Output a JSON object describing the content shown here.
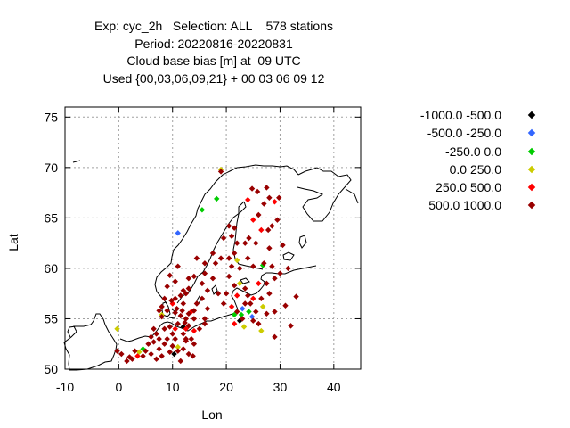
{
  "title_lines": [
    "Exp: cyc_2h   Selection: ALL    578 stations",
    "Period: 20220816-20220831",
    "Cloud base bias [m] at  09 UTC",
    "Used {00,03,06,09,21} + 00 03 06 09 12"
  ],
  "chart_data": {
    "type": "scatter",
    "xlabel": "Lon",
    "ylabel": "Lat",
    "xlim": [
      -10,
      45
    ],
    "ylim": [
      50,
      76
    ],
    "xticks": [
      -10,
      0,
      10,
      20,
      30,
      40
    ],
    "yticks": [
      50,
      55,
      60,
      65,
      70,
      75
    ],
    "grid": true,
    "legend_position": "right",
    "series": [
      {
        "name": "-1000.0 -500.0",
        "color": "#000000",
        "points": [
          [
            10.3,
            51.5
          ],
          [
            22.5,
            54.8
          ],
          [
            12.0,
            54.2
          ]
        ]
      },
      {
        "name": "-500.0 -250.0",
        "color": "#3366ff",
        "points": [
          [
            11.0,
            63.5
          ],
          [
            23.0,
            56.0
          ],
          [
            24.8,
            55.2
          ]
        ]
      },
      {
        "name": "-250.0 0.0",
        "color": "#00cc00",
        "points": [
          [
            15.5,
            65.8
          ],
          [
            18.2,
            66.9
          ],
          [
            26.8,
            60.3
          ],
          [
            21.5,
            55.4
          ],
          [
            24.2,
            55.7
          ],
          [
            22.8,
            55.4
          ],
          [
            4.5,
            52.0
          ]
        ]
      },
      {
        "name": "0.0 250.0",
        "color": "#cccc00",
        "points": [
          [
            19.0,
            69.8
          ],
          [
            -0.3,
            54.0
          ],
          [
            8.0,
            55.4
          ],
          [
            22.0,
            60.8
          ],
          [
            22.5,
            58.5
          ],
          [
            23.3,
            54.2
          ],
          [
            26.8,
            56.2
          ],
          [
            26.5,
            53.8
          ],
          [
            11.0,
            52.2
          ],
          [
            3.8,
            51.7
          ]
        ]
      },
      {
        "name": "250.0 500.0",
        "color": "#ff0000",
        "points": [
          [
            12.5,
            54.0
          ],
          [
            14.0,
            53.8
          ],
          [
            13.5,
            55.7
          ],
          [
            22.0,
            57.3
          ],
          [
            21.0,
            56.2
          ],
          [
            24.0,
            66.8
          ],
          [
            29.0,
            66.6
          ],
          [
            25.0,
            64.8
          ],
          [
            26.5,
            63.8
          ],
          [
            26.0,
            58.5
          ],
          [
            25.0,
            57.0
          ],
          [
            21.5,
            54.5
          ],
          [
            10.0,
            56.5
          ],
          [
            3.5,
            51.3
          ],
          [
            10.5,
            54.0
          ]
        ]
      },
      {
        "name": "500.0 1000.0",
        "color": "#990000",
        "points": [
          [
            19.0,
            69.6
          ],
          [
            24.8,
            67.9
          ],
          [
            25.8,
            67.6
          ],
          [
            27.5,
            68.0
          ],
          [
            28.0,
            67.0
          ],
          [
            27.0,
            66.4
          ],
          [
            29.8,
            67.0
          ],
          [
            26.0,
            65.3
          ],
          [
            28.5,
            64.2
          ],
          [
            27.8,
            63.8
          ],
          [
            29.5,
            64.8
          ],
          [
            30.5,
            62.3
          ],
          [
            28.0,
            62.0
          ],
          [
            25.5,
            62.5
          ],
          [
            24.2,
            63.0
          ],
          [
            23.5,
            62.5
          ],
          [
            24.0,
            61.0
          ],
          [
            22.0,
            62.5
          ],
          [
            21.5,
            61.5
          ],
          [
            22.5,
            60.0
          ],
          [
            25.0,
            60.2
          ],
          [
            27.0,
            60.5
          ],
          [
            28.5,
            60.2
          ],
          [
            30.0,
            59.5
          ],
          [
            29.0,
            59.0
          ],
          [
            27.5,
            58.5
          ],
          [
            28.0,
            57.5
          ],
          [
            26.5,
            57.0
          ],
          [
            24.5,
            56.5
          ],
          [
            27.5,
            55.5
          ],
          [
            29.0,
            55.7
          ],
          [
            31.0,
            56.3
          ],
          [
            32.0,
            54.3
          ],
          [
            29.0,
            53.2
          ],
          [
            33.0,
            57.2
          ],
          [
            31.5,
            60.0
          ],
          [
            20.5,
            64.2
          ],
          [
            21.5,
            64.0
          ],
          [
            21.0,
            63.2
          ],
          [
            19.5,
            63.0
          ],
          [
            20.5,
            61.0
          ],
          [
            21.0,
            60.2
          ],
          [
            20.5,
            59.2
          ],
          [
            21.5,
            58.3
          ],
          [
            20.0,
            57.5
          ],
          [
            19.5,
            56.5
          ],
          [
            18.5,
            57.5
          ],
          [
            17.5,
            59.0
          ],
          [
            18.0,
            60.5
          ],
          [
            16.0,
            59.5
          ],
          [
            14.0,
            59.2
          ],
          [
            13.0,
            58.0
          ],
          [
            12.5,
            57.5
          ],
          [
            12.0,
            56.5
          ],
          [
            14.0,
            55.8
          ],
          [
            13.0,
            55.5
          ],
          [
            12.5,
            55.0
          ],
          [
            11.5,
            55.3
          ],
          [
            11.0,
            54.5
          ],
          [
            12.0,
            53.5
          ],
          [
            13.5,
            53.0
          ],
          [
            15.0,
            54.0
          ],
          [
            16.0,
            54.5
          ],
          [
            16.5,
            56.0
          ],
          [
            15.5,
            57.0
          ],
          [
            11.5,
            57.3
          ],
          [
            10.5,
            58.7
          ],
          [
            9.5,
            59.3
          ],
          [
            11.0,
            60.2
          ],
          [
            9.0,
            58.2
          ],
          [
            8.5,
            57.0
          ],
          [
            9.0,
            55.8
          ],
          [
            8.0,
            55.2
          ],
          [
            9.5,
            54.2
          ],
          [
            10.0,
            53.5
          ],
          [
            9.0,
            53.0
          ],
          [
            8.5,
            52.5
          ],
          [
            7.5,
            52.0
          ],
          [
            7.0,
            53.5
          ],
          [
            6.0,
            53.2
          ],
          [
            6.5,
            52.7
          ],
          [
            5.5,
            52.5
          ],
          [
            5.0,
            51.8
          ],
          [
            4.5,
            51.3
          ],
          [
            3.0,
            51.8
          ],
          [
            2.5,
            51.0
          ],
          [
            0.5,
            51.5
          ],
          [
            6.0,
            51.5
          ],
          [
            7.0,
            51.0
          ],
          [
            8.0,
            51.3
          ],
          [
            9.5,
            51.7
          ],
          [
            11.0,
            51.8
          ],
          [
            12.0,
            52.0
          ],
          [
            13.0,
            51.5
          ],
          [
            14.0,
            52.5
          ],
          [
            12.5,
            53.0
          ],
          [
            10.5,
            53.0
          ],
          [
            8.5,
            54.0
          ],
          [
            7.5,
            53.0
          ],
          [
            6.5,
            54.0
          ],
          [
            10.5,
            55.6
          ],
          [
            12.0,
            57.8
          ],
          [
            10.5,
            57.0
          ],
          [
            8.0,
            56.2
          ],
          [
            14.5,
            56.5
          ],
          [
            15.5,
            58.5
          ],
          [
            16.5,
            57.8
          ],
          [
            13.0,
            59.0
          ],
          [
            16.0,
            60.5
          ],
          [
            14.5,
            61.0
          ],
          [
            17.5,
            61.5
          ],
          [
            19.0,
            61.0
          ],
          [
            23.5,
            58.0
          ],
          [
            24.0,
            57.3
          ],
          [
            23.5,
            56.5
          ],
          [
            22.0,
            55.7
          ],
          [
            23.0,
            55.0
          ],
          [
            25.0,
            54.8
          ],
          [
            26.0,
            54.5
          ],
          [
            25.5,
            55.7
          ],
          [
            12.5,
            52.8
          ],
          [
            2.0,
            51.2
          ],
          [
            1.5,
            50.8
          ],
          [
            -0.3,
            51.8
          ],
          [
            13.8,
            51.3
          ],
          [
            11.5,
            50.8
          ],
          [
            10.0,
            52.3
          ],
          [
            12.3,
            54.6
          ],
          [
            11.8,
            55.8
          ],
          [
            13.0,
            54.3
          ],
          [
            14.0,
            55.0
          ],
          [
            9.8,
            56.8
          ],
          [
            10.8,
            56.0
          ],
          [
            16.0,
            55.0
          ],
          [
            7.5,
            55.8
          ]
        ]
      }
    ]
  }
}
